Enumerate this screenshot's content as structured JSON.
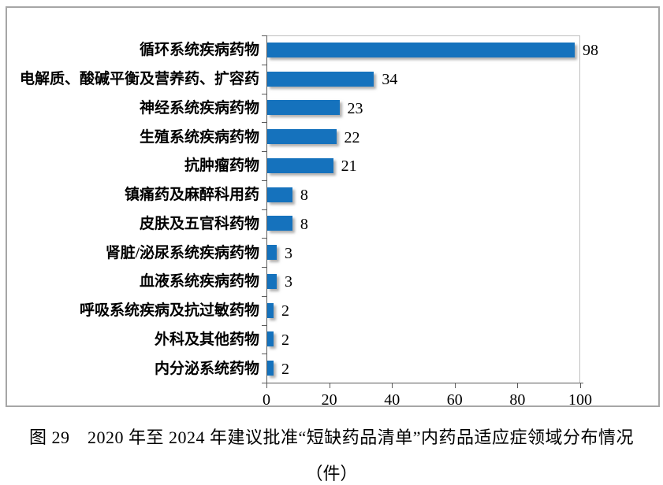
{
  "chart_data": {
    "type": "bar",
    "orientation": "horizontal",
    "title": "",
    "xlabel": "",
    "ylabel": "",
    "categories": [
      "循环系统疾病药物",
      "电解质、酸碱平衡及营养药、扩容药",
      "神经系统疾病药物",
      "生殖系统疾病药物",
      "抗肿瘤药物",
      "镇痛药及麻醉科用药",
      "皮肤及五官科药物",
      "肾脏/泌尿系统疾病药物",
      "血液系统疾病药物",
      "呼吸系统疾病及抗过敏药物",
      "外科及其他药物",
      "内分泌系统药物"
    ],
    "values": [
      98,
      34,
      23,
      22,
      21,
      8,
      8,
      3,
      3,
      2,
      2,
      2
    ],
    "xlim": [
      0,
      100
    ],
    "x_ticks": [
      0,
      20,
      40,
      60,
      80,
      100
    ],
    "grid": false,
    "legend": "none",
    "data_labels": true,
    "bar_color": "#1572bd",
    "axis_color": "#5a5a5a",
    "plot_border_color": "#bfbfbf",
    "frame_border_color": "#a6a6a6"
  },
  "caption": {
    "line1": "图 29　2020 年至 2024 年建议批准“短缺药品清单”内药品适应症领域分布情况",
    "line2": "（件）"
  }
}
